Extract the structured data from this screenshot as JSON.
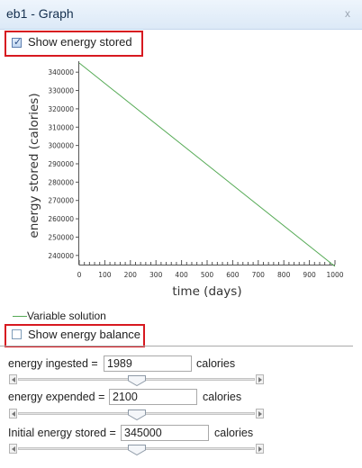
{
  "window": {
    "title": "eb1 - Graph",
    "close_glyph": "x",
    "close_icon": "close-icon"
  },
  "show_energy_stored": {
    "label": "Show energy stored",
    "checked": true
  },
  "show_energy_balance": {
    "label": "Show energy balance",
    "checked": false
  },
  "chart_data": {
    "type": "line",
    "xlabel": "time (days)",
    "ylabel": "energy stored (calories)",
    "xlim": [
      0,
      1000
    ],
    "ylim": [
      235000,
      345000
    ],
    "x_ticks": [
      0,
      100,
      200,
      300,
      400,
      500,
      600,
      700,
      800,
      900,
      1000
    ],
    "y_ticks": [
      240000,
      250000,
      260000,
      270000,
      280000,
      290000,
      300000,
      310000,
      320000,
      330000,
      340000
    ],
    "grid": false,
    "legend_placement": "bottom-left",
    "series": [
      {
        "name": "Variable solution",
        "color": "#55aa55",
        "x": [
          0,
          1000
        ],
        "y": [
          345000,
          234000
        ]
      }
    ]
  },
  "params": [
    {
      "label": "energy ingested =",
      "value": "1989",
      "unit": "calories",
      "slider_position": 0.5
    },
    {
      "label": "energy expended =",
      "value": "2100",
      "unit": "calories",
      "slider_position": 0.5
    },
    {
      "label": "Initial energy stored =",
      "value": "345000",
      "unit": "calories",
      "slider_position": 0.5
    }
  ]
}
